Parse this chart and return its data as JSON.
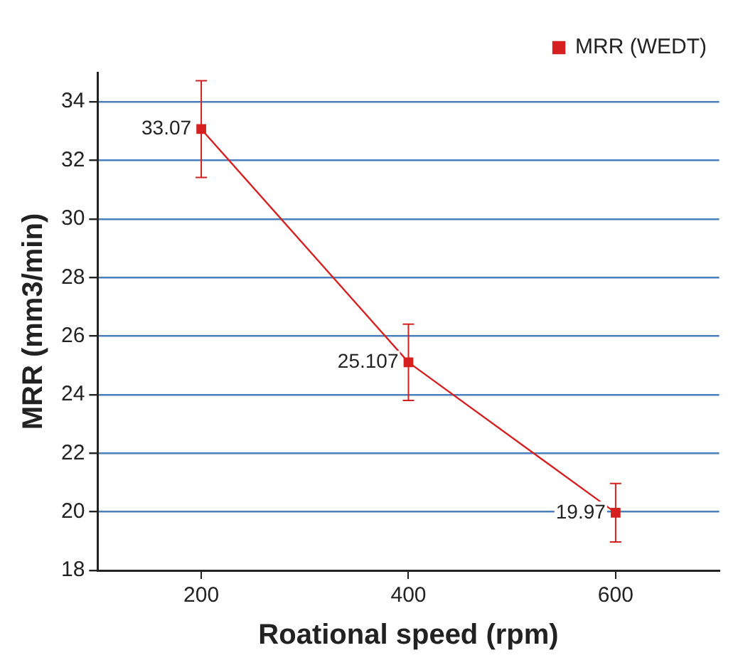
{
  "chart_data": {
    "type": "line",
    "xlabel": "Roational speed (rpm)",
    "ylabel": "MRR (mm3/min)",
    "x": [
      200,
      400,
      600
    ],
    "series": [
      {
        "name": "MRR (WEDT)",
        "color": "#d62020",
        "values": [
          33.07,
          25.107,
          19.97
        ],
        "errors": [
          1.65,
          1.3,
          1.0
        ]
      }
    ],
    "xlim": [
      100,
      700
    ],
    "xticks": [
      200,
      400,
      600
    ],
    "ylim": [
      18,
      35
    ],
    "yticks": [
      18,
      20,
      22,
      24,
      26,
      28,
      30,
      32,
      34
    ],
    "grid": "y",
    "legend": "top right",
    "marker": "square",
    "line_style": "solid",
    "data_labels": true
  }
}
